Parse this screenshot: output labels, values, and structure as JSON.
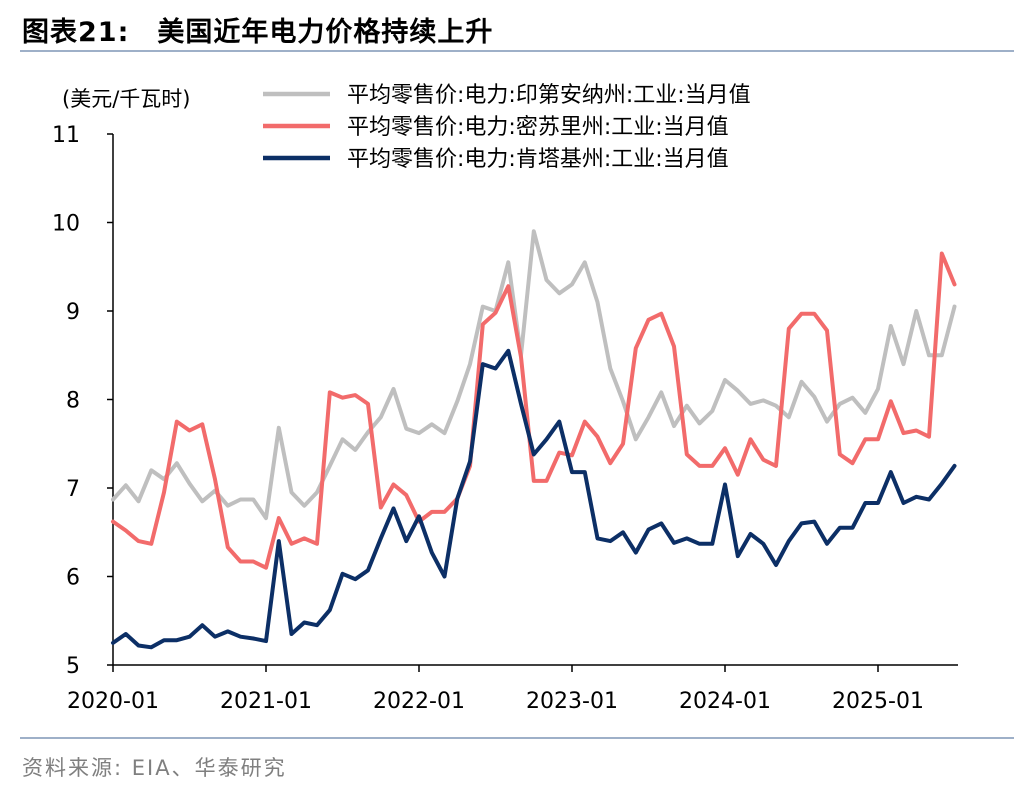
{
  "figure": {
    "label": "图表21:",
    "title": "美国近年电力价格持续上升",
    "source": "资料来源: EIA、华泰研究"
  },
  "chart_data": {
    "type": "line",
    "unit_label": "(美元/千瓦时)",
    "ylim": [
      5,
      11
    ],
    "yticks": [
      5,
      6,
      7,
      8,
      9,
      10,
      11
    ],
    "xtick_labels": [
      "2020-01",
      "2021-01",
      "2022-01",
      "2023-01",
      "2024-01",
      "2025-01"
    ],
    "start": "2020-01",
    "legend_position": "top-left",
    "grid": false,
    "series": [
      {
        "name": "平均零售价:电力:印第安纳州:工业:当月值",
        "color": "#bfbfbf",
        "values": [
          6.87,
          7.03,
          6.85,
          7.2,
          7.1,
          7.28,
          7.05,
          6.85,
          6.97,
          6.8,
          6.87,
          6.87,
          6.66,
          7.68,
          6.95,
          6.8,
          6.95,
          7.25,
          7.55,
          7.43,
          7.63,
          7.8,
          8.12,
          7.67,
          7.62,
          7.72,
          7.62,
          7.98,
          8.4,
          9.05,
          9.0,
          9.55,
          8.5,
          9.9,
          9.35,
          9.2,
          9.3,
          9.55,
          9.1,
          8.35,
          7.98,
          7.55,
          7.8,
          8.08,
          7.7,
          7.93,
          7.73,
          7.87,
          8.22,
          8.1,
          7.95,
          7.99,
          7.93,
          7.8,
          8.2,
          8.03,
          7.75,
          7.95,
          8.02,
          7.85,
          8.12,
          8.83,
          8.4,
          9.0,
          8.5,
          8.5,
          9.05
        ]
      },
      {
        "name": "平均零售价:电力:密苏里州:工业:当月值",
        "color": "#f26b6b",
        "values": [
          6.62,
          6.52,
          6.4,
          6.37,
          6.95,
          7.75,
          7.65,
          7.72,
          7.1,
          6.33,
          6.17,
          6.17,
          6.1,
          6.66,
          6.37,
          6.43,
          6.37,
          8.08,
          8.02,
          8.05,
          7.95,
          6.78,
          7.04,
          6.92,
          6.62,
          6.73,
          6.73,
          6.88,
          7.25,
          8.85,
          8.98,
          9.28,
          8.48,
          7.08,
          7.08,
          7.4,
          7.37,
          7.75,
          7.58,
          7.28,
          7.5,
          8.58,
          8.9,
          8.97,
          8.6,
          7.38,
          7.25,
          7.25,
          7.45,
          7.15,
          7.55,
          7.32,
          7.25,
          8.8,
          8.97,
          8.97,
          8.78,
          7.38,
          7.28,
          7.55,
          7.55,
          7.98,
          7.62,
          7.65,
          7.58,
          9.65,
          9.3
        ]
      },
      {
        "name": "平均零售价:电力:肯塔基州:工业:当月值",
        "color": "#0c2f66",
        "values": [
          5.25,
          5.35,
          5.22,
          5.2,
          5.28,
          5.28,
          5.32,
          5.45,
          5.32,
          5.38,
          5.32,
          5.3,
          5.27,
          6.4,
          5.35,
          5.48,
          5.45,
          5.62,
          6.03,
          5.97,
          6.07,
          6.43,
          6.77,
          6.4,
          6.68,
          6.27,
          6.0,
          6.88,
          7.3,
          8.4,
          8.35,
          8.55,
          7.95,
          7.38,
          7.55,
          7.75,
          7.18,
          7.18,
          6.43,
          6.4,
          6.5,
          6.27,
          6.53,
          6.6,
          6.38,
          6.43,
          6.37,
          6.37,
          7.04,
          6.23,
          6.48,
          6.37,
          6.13,
          6.4,
          6.6,
          6.62,
          6.37,
          6.55,
          6.55,
          6.83,
          6.83,
          7.18,
          6.83,
          6.9,
          6.87,
          7.05,
          7.25
        ]
      }
    ]
  }
}
